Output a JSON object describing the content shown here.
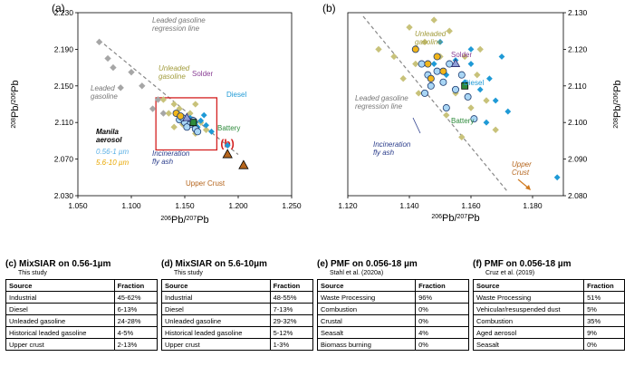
{
  "chart_data": [
    {
      "type": "scatter",
      "panel_label": "(a)",
      "xlim": [
        1.05,
        1.25
      ],
      "ylim": [
        2.03,
        2.23
      ],
      "xticks": [
        "1.050",
        "1.100",
        "1.150",
        "1.200",
        "1.250"
      ],
      "yticks": [
        "2.030",
        "2.070",
        "2.110",
        "2.150",
        "2.190",
        "2.230"
      ],
      "xlabel_sup": "206",
      "xlabel_mid": "Pb/",
      "xlabel_sup2": "207",
      "xlabel_end": "Pb",
      "ylabel_sup": "208",
      "ylabel_mid": "Pb/",
      "ylabel_sup2": "206",
      "ylabel_end": "Pb",
      "regression_line": [
        [
          1.07,
          2.2
        ],
        [
          1.2,
          2.075
        ]
      ],
      "inset_box": {
        "x": [
          1.123,
          1.18
        ],
        "y": [
          2.08,
          2.137
        ],
        "label": "(b)"
      },
      "annotations": {
        "regression": "Leaded gasoline\nregression line",
        "leaded": "Leaded\ngasoline",
        "unleaded": "Unleaded\ngasoline",
        "solder": "Solder",
        "diesel": "Diesel",
        "battery": "Battery",
        "manila": "Manila\naerosol",
        "fine": "0.56-1 µm",
        "coarse": "5.6-10 µm",
        "incineration": "Incineration\nfly ash",
        "crust": "Upper Crust"
      },
      "series": [
        {
          "kind": "leaded",
          "color": "#a6a6a6",
          "points": [
            [
              1.07,
              2.198
            ],
            [
              1.078,
              2.18
            ],
            [
              1.083,
              2.17
            ],
            [
              1.1,
              2.165
            ],
            [
              1.09,
              2.148
            ],
            [
              1.11,
              2.15
            ],
            [
              1.125,
              2.135
            ],
            [
              1.13,
              2.12
            ],
            [
              1.12,
              2.125
            ]
          ]
        },
        {
          "kind": "unleaded",
          "color": "#c8c27a",
          "points": [
            [
              1.13,
              2.135
            ],
            [
              1.14,
              2.13
            ],
            [
              1.145,
              2.125
            ],
            [
              1.135,
              2.12
            ],
            [
              1.15,
              2.115
            ],
            [
              1.155,
              2.12
            ],
            [
              1.16,
              2.13
            ],
            [
              1.165,
              2.11
            ],
            [
              1.148,
              2.108
            ],
            [
              1.17,
              2.102
            ],
            [
              1.14,
              2.105
            ],
            [
              1.16,
              2.098
            ]
          ]
        },
        {
          "kind": "diesel",
          "color": "#1f9ad6",
          "points": [
            [
              1.155,
              2.115
            ],
            [
              1.16,
              2.11
            ],
            [
              1.165,
              2.112
            ],
            [
              1.17,
              2.107
            ],
            [
              1.162,
              2.105
            ],
            [
              1.175,
              2.1
            ],
            [
              1.168,
              2.118
            ],
            [
              1.19,
              2.085
            ]
          ]
        },
        {
          "kind": "fine",
          "color": "#a9d6f5",
          "points": [
            [
              1.145,
              2.113
            ],
            [
              1.15,
              2.11
            ],
            [
              1.155,
              2.108
            ],
            [
              1.148,
              2.115
            ],
            [
              1.152,
              2.105
            ],
            [
              1.158,
              2.112
            ],
            [
              1.16,
              2.103
            ],
            [
              1.162,
              2.1
            ]
          ]
        },
        {
          "kind": "coarse",
          "color": "#f2b519",
          "points": [
            [
              1.142,
              2.12
            ],
            [
              1.146,
              2.117
            ]
          ]
        },
        {
          "kind": "battery",
          "color": "#2e8b3c",
          "points": [
            [
              1.158,
              2.11
            ]
          ]
        },
        {
          "kind": "solder",
          "color": "#8e9ed6",
          "points": [
            [
              1.152,
              2.115
            ]
          ]
        },
        {
          "kind": "crust",
          "color": "#b5651d",
          "points": [
            [
              1.19,
              2.075
            ],
            [
              1.205,
              2.063
            ]
          ]
        }
      ]
    },
    {
      "type": "scatter",
      "panel_label": "(b)",
      "xlim": [
        1.12,
        1.19
      ],
      "ylim": [
        2.08,
        2.13
      ],
      "xticks": [
        "1.120",
        "1.140",
        "1.160",
        "1.180"
      ],
      "yticks": [
        "2.080",
        "2.090",
        "2.100",
        "2.110",
        "2.120",
        "2.130"
      ],
      "xlabel_sup": "206",
      "xlabel_mid": "Pb/",
      "xlabel_sup2": "207",
      "xlabel_end": "Pb",
      "ylabel_sup": "208",
      "ylabel_mid": "Pb/",
      "ylabel_sup2": "206",
      "ylabel_end": "Pb",
      "regression_line": [
        [
          1.125,
          2.129
        ],
        [
          1.172,
          2.081
        ]
      ],
      "annotations": {
        "unleaded": "Unleaded\ngasoline",
        "solder": "Solder",
        "diesel": "Diesel",
        "battery": "Battery",
        "regression": "Leaded gasoline\nregression line",
        "incineration": "Incineration\nfly ash",
        "crust": "Upper\nCrust"
      },
      "series": [
        {
          "kind": "unleaded",
          "color": "#c8c27a",
          "points": [
            [
              1.13,
              2.12
            ],
            [
              1.135,
              2.118
            ],
            [
              1.14,
              2.126
            ],
            [
              1.142,
              2.116
            ],
            [
              1.145,
              2.122
            ],
            [
              1.147,
              2.112
            ],
            [
              1.15,
              2.118
            ],
            [
              1.153,
              2.125
            ],
            [
              1.155,
              2.108
            ],
            [
              1.158,
              2.118
            ],
            [
              1.16,
              2.104
            ],
            [
              1.162,
              2.113
            ],
            [
              1.165,
              2.106
            ],
            [
              1.143,
              2.108
            ],
            [
              1.152,
              2.102
            ],
            [
              1.168,
              2.098
            ],
            [
              1.157,
              2.096
            ],
            [
              1.138,
              2.112
            ],
            [
              1.148,
              2.128
            ],
            [
              1.163,
              2.12
            ]
          ]
        },
        {
          "kind": "diesel",
          "color": "#1f9ad6",
          "points": [
            [
              1.148,
              2.116
            ],
            [
              1.152,
              2.113
            ],
            [
              1.155,
              2.117
            ],
            [
              1.158,
              2.111
            ],
            [
              1.16,
              2.116
            ],
            [
              1.163,
              2.109
            ],
            [
              1.166,
              2.112
            ],
            [
              1.168,
              2.106
            ],
            [
              1.17,
              2.118
            ],
            [
              1.165,
              2.1
            ],
            [
              1.172,
              2.103
            ],
            [
              1.16,
              2.12
            ],
            [
              1.188,
              2.085
            ],
            [
              1.15,
              2.122
            ]
          ]
        },
        {
          "kind": "fine",
          "color": "#a9d6f5",
          "points": [
            [
              1.144,
              2.116
            ],
            [
              1.146,
              2.113
            ],
            [
              1.149,
              2.114
            ],
            [
              1.151,
              2.111
            ],
            [
              1.153,
              2.116
            ],
            [
              1.155,
              2.109
            ],
            [
              1.147,
              2.11
            ],
            [
              1.157,
              2.113
            ],
            [
              1.159,
              2.107
            ],
            [
              1.152,
              2.104
            ],
            [
              1.145,
              2.108
            ],
            [
              1.161,
              2.101
            ]
          ]
        },
        {
          "kind": "coarse",
          "color": "#f2b519",
          "points": [
            [
              1.142,
              2.12
            ],
            [
              1.146,
              2.116
            ],
            [
              1.149,
              2.118
            ],
            [
              1.151,
              2.114
            ],
            [
              1.147,
              2.112
            ]
          ]
        },
        {
          "kind": "battery",
          "color": "#2e8b3c",
          "points": [
            [
              1.158,
              2.11
            ]
          ]
        },
        {
          "kind": "solder",
          "color": "#8e9ed6",
          "points": [
            [
              1.155,
              2.116
            ]
          ]
        }
      ]
    }
  ],
  "tables": [
    {
      "title_pre": "(c) MixSIAR on 0.56-1",
      "title_unit": "µm",
      "subtitle": "This study",
      "header": [
        "Source",
        "Fraction"
      ],
      "rows": [
        [
          "Industrial",
          "45-62%"
        ],
        [
          "Diesel",
          "6-13%"
        ],
        [
          "Unleaded gasoline",
          "24-28%"
        ],
        [
          "Historical leaded gasoline",
          "4-5%"
        ],
        [
          "Upper crust",
          "2-13%"
        ]
      ]
    },
    {
      "title_pre": "(d) MixSIAR on 5.6-10",
      "title_unit": "µm",
      "subtitle": "This study",
      "header": [
        "Source",
        "Fraction"
      ],
      "rows": [
        [
          "Industrial",
          "48-55%"
        ],
        [
          "Diesel",
          "7-13%"
        ],
        [
          "Unleaded gasoline",
          "29-32%"
        ],
        [
          "Historical leaded gasoline",
          "5-12%"
        ],
        [
          "Upper crust",
          "1-3%"
        ]
      ]
    },
    {
      "title_pre": "(e) PMF on 0.056-18",
      "title_unit": " µm",
      "subtitle": "Stahl et al. (2020a)",
      "header": [
        "Source",
        "Fraction"
      ],
      "rows": [
        [
          "Waste Processing",
          "96%"
        ],
        [
          "Combustion",
          "0%"
        ],
        [
          "Crustal",
          "0%"
        ],
        [
          "Seasalt",
          "4%"
        ],
        [
          "Biomass burning",
          "0%"
        ]
      ]
    },
    {
      "title_pre": "(f) PMF on 0.056-18",
      "title_unit": " µm",
      "subtitle": "Cruz et al. (2019)",
      "header": [
        "Source",
        "Fraction"
      ],
      "rows": [
        [
          "Waste Processing",
          "51%"
        ],
        [
          "Vehicular/resuspended dust",
          "5%"
        ],
        [
          "Combustion",
          "35%"
        ],
        [
          "Aged aerosol",
          "9%"
        ],
        [
          "Seasalt",
          "0%"
        ]
      ]
    }
  ]
}
